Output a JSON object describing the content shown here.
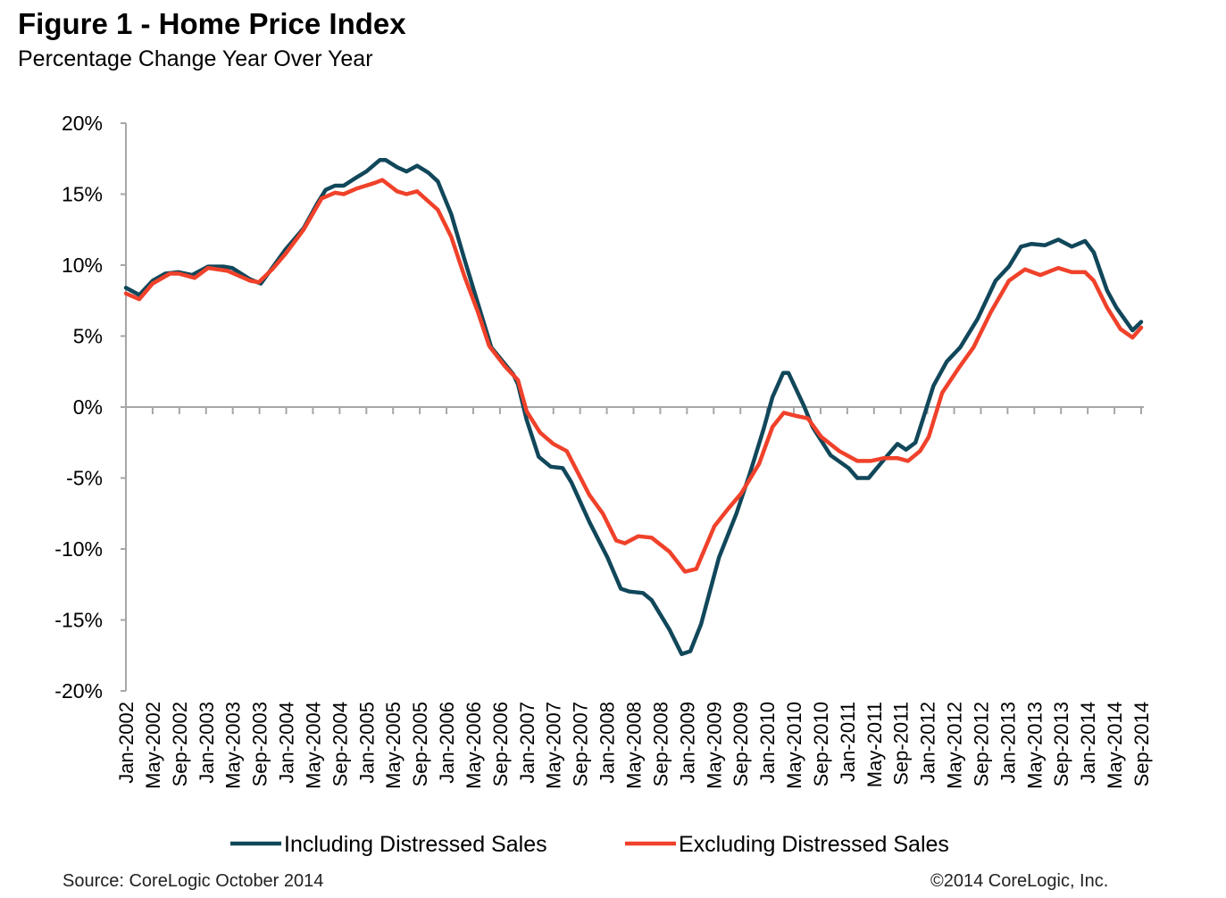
{
  "chart_data": {
    "type": "line",
    "title": "Figure 1 - Home Price Index",
    "subtitle": "Percentage Change Year Over Year",
    "xlabel": "",
    "ylabel": "",
    "x_unit": "months since Jan-2002",
    "xlim": [
      0,
      152
    ],
    "ylim": [
      -20,
      20
    ],
    "yticks": [
      20,
      15,
      10,
      5,
      0,
      -5,
      -10,
      -15,
      -20
    ],
    "ytick_labels": [
      "20%",
      "15%",
      "10%",
      "5%",
      "0%",
      "-5%",
      "-10%",
      "-15%",
      "-20%"
    ],
    "xtick_labels": [
      "Jan-2002",
      "May-2002",
      "Sep-2002",
      "Jan-2003",
      "May-2003",
      "Sep-2003",
      "Jan-2004",
      "May-2004",
      "Sep-2004",
      "Jan-2005",
      "May-2005",
      "Sep-2005",
      "Jan-2006",
      "May-2006",
      "Sep-2006",
      "Jan-2007",
      "May-2007",
      "Sep-2007",
      "Jan-2008",
      "May-2008",
      "Sep-2008",
      "Jan-2009",
      "May-2009",
      "Sep-2009",
      "Jan-2010",
      "May-2010",
      "Sep-2010",
      "Jan-2011",
      "May-2011",
      "Sep-2011",
      "Jan-2012",
      "May-2012",
      "Sep-2012",
      "Jan-2013",
      "May-2013",
      "Sep-2013",
      "Jan-2014",
      "May-2014",
      "Sep-2014"
    ],
    "grid": false,
    "legend_position": "bottom",
    "series": [
      {
        "name": "Including Distressed Sales",
        "color": "#11475a",
        "points": [
          [
            0,
            8.4
          ],
          [
            2,
            7.9
          ],
          [
            4,
            8.9
          ],
          [
            5.9,
            9.4
          ],
          [
            7.9,
            9.5
          ],
          [
            9.9,
            9.3
          ],
          [
            12.3,
            9.9
          ],
          [
            14.6,
            9.9
          ],
          [
            15.9,
            9.8
          ],
          [
            18.6,
            9.0
          ],
          [
            20.2,
            8.7
          ],
          [
            21.9,
            9.8
          ],
          [
            23.9,
            11.1
          ],
          [
            26.6,
            12.6
          ],
          [
            28.6,
            14.3
          ],
          [
            29.9,
            15.3
          ],
          [
            31.3,
            15.6
          ],
          [
            32.6,
            15.6
          ],
          [
            34.6,
            16.2
          ],
          [
            36.0,
            16.6
          ],
          [
            38.0,
            17.4
          ],
          [
            38.9,
            17.4
          ],
          [
            40.6,
            16.9
          ],
          [
            42.0,
            16.6
          ],
          [
            43.6,
            17.0
          ],
          [
            45.3,
            16.5
          ],
          [
            46.7,
            15.9
          ],
          [
            48.7,
            13.6
          ],
          [
            50.7,
            10.4
          ],
          [
            52.7,
            7.3
          ],
          [
            54.7,
            4.2
          ],
          [
            58.0,
            2.3
          ],
          [
            58.7,
            1.6
          ],
          [
            60.0,
            -0.9
          ],
          [
            61.8,
            -3.5
          ],
          [
            63.6,
            -4.2
          ],
          [
            65.4,
            -4.3
          ],
          [
            66.7,
            -5.3
          ],
          [
            69.4,
            -8.1
          ],
          [
            72.1,
            -10.6
          ],
          [
            74.1,
            -12.8
          ],
          [
            75.4,
            -13.0
          ],
          [
            77.4,
            -13.1
          ],
          [
            78.7,
            -13.6
          ],
          [
            81.4,
            -15.7
          ],
          [
            83.2,
            -17.4
          ],
          [
            84.5,
            -17.2
          ],
          [
            86.1,
            -15.3
          ],
          [
            88.8,
            -10.6
          ],
          [
            91.4,
            -7.5
          ],
          [
            93.4,
            -4.7
          ],
          [
            95.5,
            -1.5
          ],
          [
            96.8,
            0.7
          ],
          [
            98.4,
            2.4
          ],
          [
            99.2,
            2.4
          ],
          [
            101.5,
            0.1
          ],
          [
            102.8,
            -1.4
          ],
          [
            105.5,
            -3.4
          ],
          [
            108.2,
            -4.3
          ],
          [
            109.5,
            -5.0
          ],
          [
            111.2,
            -5.0
          ],
          [
            113.5,
            -3.7
          ],
          [
            115.5,
            -2.6
          ],
          [
            116.8,
            -3.0
          ],
          [
            118.2,
            -2.5
          ],
          [
            119.5,
            -0.6
          ],
          [
            120.9,
            1.5
          ],
          [
            122.9,
            3.2
          ],
          [
            124.9,
            4.2
          ],
          [
            127.5,
            6.2
          ],
          [
            130.2,
            8.9
          ],
          [
            132.2,
            9.9
          ],
          [
            134.0,
            11.3
          ],
          [
            135.6,
            11.5
          ],
          [
            137.6,
            11.4
          ],
          [
            139.6,
            11.8
          ],
          [
            141.6,
            11.3
          ],
          [
            143.6,
            11.7
          ],
          [
            144.9,
            10.9
          ],
          [
            146.9,
            8.2
          ],
          [
            148.3,
            7.0
          ],
          [
            150.7,
            5.4
          ],
          [
            152,
            6.0
          ]
        ]
      },
      {
        "name": "Excluding Distressed Sales",
        "color": "#f0412a",
        "points": [
          [
            0,
            8.0
          ],
          [
            2,
            7.6
          ],
          [
            4,
            8.7
          ],
          [
            6.6,
            9.4
          ],
          [
            7.9,
            9.4
          ],
          [
            10.3,
            9.1
          ],
          [
            12.3,
            9.8
          ],
          [
            15.2,
            9.6
          ],
          [
            18.6,
            8.9
          ],
          [
            19.9,
            8.8
          ],
          [
            21.9,
            9.7
          ],
          [
            23.9,
            10.8
          ],
          [
            26.6,
            12.5
          ],
          [
            29.3,
            14.7
          ],
          [
            31.3,
            15.1
          ],
          [
            32.6,
            15.0
          ],
          [
            34.6,
            15.4
          ],
          [
            37.3,
            15.8
          ],
          [
            38.4,
            16.0
          ],
          [
            40.6,
            15.2
          ],
          [
            42.0,
            15.0
          ],
          [
            43.6,
            15.2
          ],
          [
            46.7,
            13.9
          ],
          [
            48.7,
            12.0
          ],
          [
            50.7,
            9.2
          ],
          [
            52.7,
            6.7
          ],
          [
            54.4,
            4.3
          ],
          [
            56.7,
            2.9
          ],
          [
            58.7,
            1.9
          ],
          [
            60.0,
            -0.3
          ],
          [
            62.0,
            -1.8
          ],
          [
            64.0,
            -2.6
          ],
          [
            66.0,
            -3.1
          ],
          [
            69.4,
            -6.2
          ],
          [
            71.4,
            -7.5
          ],
          [
            73.4,
            -9.4
          ],
          [
            74.7,
            -9.6
          ],
          [
            76.7,
            -9.1
          ],
          [
            78.7,
            -9.2
          ],
          [
            81.4,
            -10.2
          ],
          [
            83.7,
            -11.6
          ],
          [
            85.4,
            -11.4
          ],
          [
            88.1,
            -8.4
          ],
          [
            90.1,
            -7.2
          ],
          [
            92.1,
            -6.1
          ],
          [
            94.8,
            -4.0
          ],
          [
            96.8,
            -1.4
          ],
          [
            98.5,
            -0.4
          ],
          [
            100.1,
            -0.6
          ],
          [
            102.1,
            -0.8
          ],
          [
            104.1,
            -2.1
          ],
          [
            106.8,
            -3.1
          ],
          [
            109.5,
            -3.8
          ],
          [
            111.5,
            -3.8
          ],
          [
            113.5,
            -3.6
          ],
          [
            115.5,
            -3.6
          ],
          [
            117.1,
            -3.8
          ],
          [
            118.9,
            -3.1
          ],
          [
            120.2,
            -2.1
          ],
          [
            122.2,
            1.0
          ],
          [
            124.9,
            2.9
          ],
          [
            126.9,
            4.2
          ],
          [
            129.5,
            6.7
          ],
          [
            132.2,
            8.9
          ],
          [
            134.6,
            9.7
          ],
          [
            136.9,
            9.3
          ],
          [
            139.6,
            9.8
          ],
          [
            141.6,
            9.5
          ],
          [
            143.6,
            9.5
          ],
          [
            144.9,
            8.9
          ],
          [
            146.9,
            7.0
          ],
          [
            148.9,
            5.5
          ],
          [
            150.7,
            4.9
          ],
          [
            152,
            5.6
          ]
        ]
      }
    ]
  },
  "footer": {
    "source": "Source: CoreLogic  October 2014",
    "copyright": "©2014 CoreLogic, Inc."
  }
}
